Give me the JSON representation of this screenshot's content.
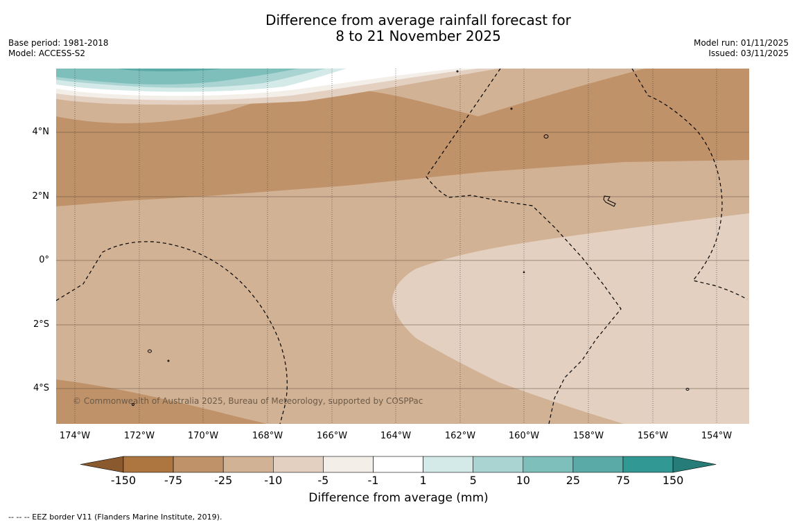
{
  "header": {
    "title_line1": "Difference from average rainfall forecast for",
    "title_line2": "8 to 21 November 2025",
    "base_period": "Base period: 1981-2018",
    "model": "Model: ACCESS-S2",
    "model_run": "Model run: 01/11/2025",
    "issued": "Issued: 03/11/2025"
  },
  "map": {
    "lat_labels": [
      "4°N",
      "2°N",
      "0°",
      "2°S",
      "4°S"
    ],
    "lon_labels": [
      "174°W",
      "172°W",
      "170°W",
      "168°W",
      "166°W",
      "164°W",
      "162°W",
      "160°W",
      "158°W",
      "156°W",
      "154°W"
    ],
    "copyright": "© Commonwealth of Australia 2025, Bureau of Meteorology, supported by COSPPac"
  },
  "legend": {
    "title": "Difference from average (mm)",
    "labels": [
      "-150",
      "-75",
      "-25",
      "-10",
      "-5",
      "-1",
      "1",
      "5",
      "10",
      "25",
      "75",
      "150"
    ],
    "colors": [
      "#ad7641",
      "#c0926a",
      "#d2b295",
      "#e3d0c0",
      "#f4eee8",
      "#ffffff",
      "#d4eae8",
      "#a9d4d2",
      "#7fbfbb",
      "#5aaba7",
      "#329894"
    ],
    "low_arrow_color": "#8a5a2e",
    "high_arrow_color": "#267c78"
  },
  "footnote": "-- -- -- EEZ border V11 (Flanders Marine Institute, 2019)."
}
